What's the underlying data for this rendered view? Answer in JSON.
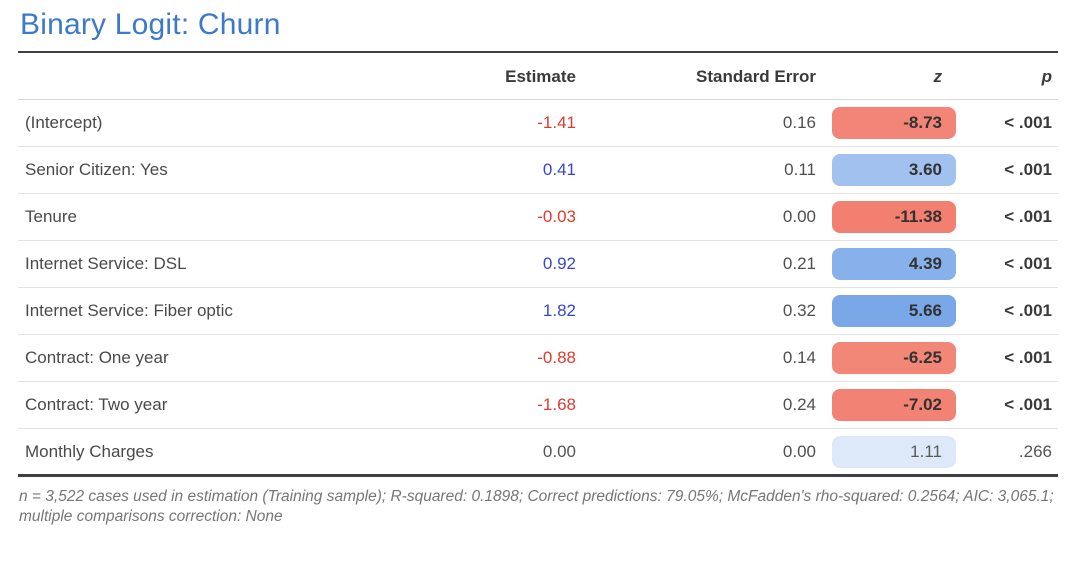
{
  "title": "Binary Logit: Churn",
  "header": {
    "label": "",
    "estimate": "Estimate",
    "se": "Standard Error",
    "z": "z",
    "p": "p"
  },
  "rows": [
    {
      "label": "(Intercept)",
      "estimate": "-1.41",
      "estimate_color": "#e23a2d",
      "se": "0.16",
      "z": "-8.73",
      "z_bg": "#f28577",
      "p": "< .001",
      "significant": "true"
    },
    {
      "label": "Senior Citizen: Yes",
      "estimate": "0.41",
      "estimate_color": "#3845d1",
      "se": "0.11",
      "z": "3.60",
      "z_bg": "#a2c1ef",
      "p": "< .001",
      "significant": "true"
    },
    {
      "label": "Tenure",
      "estimate": "-0.03",
      "estimate_color": "#e23a2d",
      "se": "0.00",
      "z": "-11.38",
      "z_bg": "#f27f6f",
      "p": "< .001",
      "significant": "true"
    },
    {
      "label": "Internet Service: DSL",
      "estimate": "0.92",
      "estimate_color": "#3845d1",
      "se": "0.21",
      "z": "4.39",
      "z_bg": "#88b0ea",
      "p": "< .001",
      "significant": "true"
    },
    {
      "label": "Internet Service: Fiber optic",
      "estimate": "1.82",
      "estimate_color": "#3845d1",
      "se": "0.32",
      "z": "5.66",
      "z_bg": "#7aa7e8",
      "p": "< .001",
      "significant": "true"
    },
    {
      "label": "Contract: One year",
      "estimate": "-0.88",
      "estimate_color": "#e23a2d",
      "se": "0.14",
      "z": "-6.25",
      "z_bg": "#f28778",
      "p": "< .001",
      "significant": "true"
    },
    {
      "label": "Contract: Two year",
      "estimate": "-1.68",
      "estimate_color": "#e23a2d",
      "se": "0.24",
      "z": "-7.02",
      "z_bg": "#f28374",
      "p": "< .001",
      "significant": "true"
    },
    {
      "label": "Monthly Charges",
      "estimate": "0.00",
      "estimate_color": "#555555",
      "se": "0.00",
      "z": "1.11",
      "z_bg": "#dde9f8",
      "p": ".266",
      "significant": "false"
    }
  ],
  "footnote": "n = 3,522 cases used in estimation (Training sample); R-squared: 0.1898; Correct predictions: 79.05%; McFadden's rho-squared: 0.2564; AIC: 3,065.1; multiple comparisons correction: None",
  "colors": {
    "title_blue": "#3b7ac9",
    "estimate_negative": "#e23a2d",
    "estimate_positive": "#3845d1",
    "badge_negative": "#f28577",
    "badge_positive": "#7aa7e8",
    "badge_weak_positive": "#dde9f8"
  },
  "chart_data": {
    "type": "table",
    "title": "Binary Logit: Churn",
    "columns": [
      "",
      "Estimate",
      "Standard Error",
      "z",
      "p"
    ],
    "rows": [
      [
        "(Intercept)",
        -1.41,
        0.16,
        -8.73,
        "< .001"
      ],
      [
        "Senior Citizen: Yes",
        0.41,
        0.11,
        3.6,
        "< .001"
      ],
      [
        "Tenure",
        -0.03,
        0.0,
        -11.38,
        "< .001"
      ],
      [
        "Internet Service: DSL",
        0.92,
        0.21,
        4.39,
        "< .001"
      ],
      [
        "Internet Service: Fiber optic",
        1.82,
        0.32,
        5.66,
        "< .001"
      ],
      [
        "Contract: One year",
        -0.88,
        0.14,
        -6.25,
        "< .001"
      ],
      [
        "Contract: Two year",
        -1.68,
        0.24,
        -7.02,
        "< .001"
      ],
      [
        "Monthly Charges",
        0.0,
        0.0,
        1.11,
        ".266"
      ]
    ],
    "footnote": "n = 3,522 cases used in estimation (Training sample); R-squared: 0.1898; Correct predictions: 79.05%; McFadden's rho-squared: 0.2564; AIC: 3,065.1; multiple comparisons correction: None"
  }
}
